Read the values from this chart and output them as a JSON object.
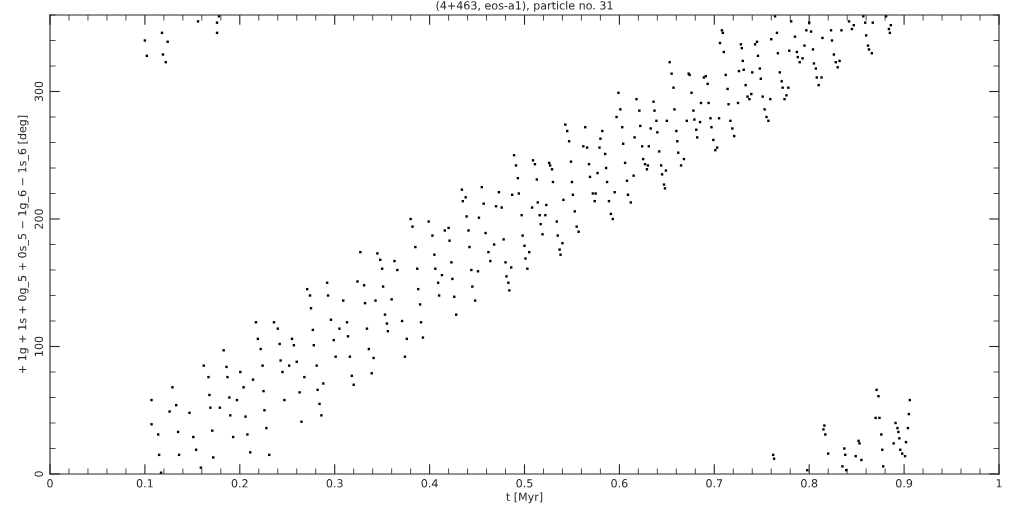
{
  "chart_data": {
    "type": "scatter",
    "title": "(4+463, eos-a1), particle no. 31",
    "xlabel": "t [Myr]",
    "ylabel": "+ 1g + 1s + 0g_5 + 0s_5 − 1g_6 − 1s_6 [deg]",
    "xlim": [
      0,
      1
    ],
    "xticks": [
      0,
      0.1,
      0.2,
      0.3,
      0.4,
      0.5,
      0.6,
      0.7,
      0.8,
      0.9,
      1
    ],
    "ylim": [
      0,
      360
    ],
    "yticks": [
      0,
      100,
      200,
      300
    ],
    "grid": false,
    "legend": false,
    "marker": "square",
    "series": [
      {
        "color": "#000000",
        "x": [
          0.1,
          0.102,
          0.118,
          0.119,
          0.122,
          0.124,
          0.156,
          0.176,
          0.176,
          0.178,
          0.107,
          0.107,
          0.114,
          0.115,
          0.117,
          0.126,
          0.129,
          0.133,
          0.135,
          0.136,
          0.147,
          0.151,
          0.154,
          0.159,
          0.162,
          0.167,
          0.168,
          0.169,
          0.171,
          0.172,
          0.179,
          0.183,
          0.186,
          0.187,
          0.189,
          0.19,
          0.193,
          0.197,
          0.2005,
          0.204,
          0.206,
          0.208,
          0.211,
          0.214,
          0.217,
          0.219,
          0.222,
          0.224,
          0.225,
          0.226,
          0.228,
          0.231,
          0.236,
          0.24,
          0.242,
          0.243,
          0.245,
          0.247,
          0.252,
          0.255,
          0.257,
          0.26,
          0.263,
          0.265,
          0.268,
          0.271,
          0.274,
          0.275,
          0.277,
          0.278,
          0.281,
          0.282,
          0.284,
          0.286,
          0.288,
          0.292,
          0.293,
          0.296,
          0.299,
          0.301,
          0.305,
          0.309,
          0.313,
          0.314,
          0.316,
          0.318,
          0.32,
          0.324,
          0.327,
          0.331,
          0.332,
          0.334,
          0.336,
          0.339,
          0.341,
          0.343,
          0.345,
          0.348,
          0.35,
          0.351,
          0.353,
          0.355,
          0.356,
          0.36,
          0.363,
          0.366,
          0.371,
          0.374,
          0.376,
          0.38,
          0.382,
          0.385,
          0.387,
          0.388,
          0.39,
          0.391,
          0.393,
          0.399,
          0.403,
          0.405,
          0.406,
          0.409,
          0.41,
          0.413,
          0.416,
          0.42,
          0.421,
          0.423,
          0.424,
          0.426,
          0.428,
          0.434,
          0.435,
          0.438,
          0.439,
          0.441,
          0.442,
          0.444,
          0.445,
          0.448,
          0.451,
          0.452,
          0.455,
          0.457,
          0.459,
          0.462,
          0.464,
          0.468,
          0.47,
          0.473,
          0.476,
          0.478,
          0.48,
          0.481,
          0.483,
          0.484,
          0.486,
          0.487,
          0.489,
          0.491,
          0.493,
          0.494,
          0.497,
          0.498,
          0.5,
          0.501,
          0.503,
          0.505,
          0.508,
          0.509,
          0.511,
          0.513,
          0.514,
          0.516,
          0.517,
          0.519,
          0.522,
          0.523,
          0.526,
          0.527,
          0.529,
          0.53,
          0.534,
          0.535,
          0.537,
          0.538,
          0.54,
          0.541,
          0.543,
          0.545,
          0.547,
          0.549,
          0.55,
          0.551,
          0.553,
          0.555,
          0.557,
          0.562,
          0.564,
          0.566,
          0.568,
          0.569,
          0.572,
          0.574,
          0.575,
          0.577,
          0.579,
          0.58,
          0.582,
          0.585,
          0.586,
          0.587,
          0.589,
          0.591,
          0.593,
          0.595,
          0.597,
          0.599,
          0.601,
          0.603,
          0.604,
          0.606,
          0.608,
          0.609,
          0.612,
          0.615,
          0.616,
          0.618,
          0.621,
          0.622,
          0.624,
          0.625,
          0.627,
          0.629,
          0.63,
          0.631,
          0.633,
          0.636,
          0.637,
          0.639,
          0.64,
          0.642,
          0.644,
          0.645,
          0.647,
          0.648,
          0.649,
          0.65,
          0.653,
          0.655,
          0.657,
          0.658,
          0.66,
          0.661,
          0.662,
          0.665,
          0.668,
          0.671,
          0.673,
          0.674,
          0.676,
          0.678,
          0.679,
          0.681,
          0.682,
          0.685,
          0.686,
          0.689,
          0.691,
          0.693,
          0.694,
          0.696,
          0.697,
          0.699,
          0.701,
          0.703,
          0.705,
          0.706,
          0.708,
          0.709,
          0.71,
          0.712,
          0.714,
          0.715,
          0.717,
          0.719,
          0.721,
          0.725,
          0.726,
          0.728,
          0.729,
          0.73,
          0.731,
          0.733,
          0.735,
          0.737,
          0.739,
          0.74,
          0.743,
          0.745,
          0.746,
          0.748,
          0.749,
          0.751,
          0.753,
          0.755,
          0.757,
          0.759,
          0.76,
          0.764,
          0.766,
          0.767,
          0.769,
          0.771,
          0.772,
          0.774,
          0.776,
          0.778,
          0.779,
          0.781,
          0.785,
          0.787,
          0.788,
          0.79,
          0.793,
          0.795,
          0.797,
          0.8,
          0.802,
          0.804,
          0.805,
          0.807,
          0.808,
          0.81,
          0.813,
          0.814,
          0.823,
          0.824,
          0.826,
          0.828,
          0.83,
          0.832,
          0.834,
          0.842,
          0.845,
          0.847,
          0.857,
          0.859,
          0.86,
          0.862,
          0.863,
          0.866,
          0.867,
          0.881,
          0.884,
          0.885,
          0.886,
          0.762,
          0.763,
          0.798,
          0.815,
          0.816,
          0.817,
          0.82,
          0.835,
          0.837,
          0.838,
          0.839,
          0.849,
          0.852,
          0.853,
          0.855,
          0.871,
          0.873,
          0.87,
          0.874,
          0.876,
          0.877,
          0.878,
          0.889,
          0.891,
          0.893,
          0.894,
          0.895,
          0.896,
          0.898,
          0.901,
          0.902,
          0.904,
          0.905,
          0.906
        ],
        "values": [
          340,
          328,
          346,
          329,
          323,
          339,
          355,
          354,
          346,
          359,
          58,
          39,
          31,
          15,
          1,
          49,
          68,
          54,
          33,
          15,
          48,
          29,
          19,
          5,
          85,
          76,
          62,
          52,
          34,
          13,
          52,
          97,
          84,
          76,
          60,
          46,
          29,
          58,
          80,
          68,
          45,
          31,
          17,
          74,
          119,
          106,
          98,
          85,
          65,
          50,
          36,
          15,
          119,
          114,
          102,
          89,
          80,
          58,
          85,
          106,
          101,
          88,
          64,
          41,
          76,
          145,
          140,
          130,
          113,
          101,
          85,
          66,
          55,
          46,
          71,
          150,
          140,
          121,
          105,
          92,
          114,
          136,
          119,
          108,
          92,
          77,
          70,
          151,
          174,
          148,
          134,
          114,
          98,
          79,
          91,
          136,
          173,
          168,
          161,
          147,
          125,
          118,
          112,
          137,
          167,
          160,
          120,
          92,
          106,
          200,
          194,
          178,
          161,
          145,
          133,
          119,
          107,
          198,
          187,
          172,
          161,
          150,
          140,
          156,
          191,
          193,
          183,
          166,
          153,
          139,
          125,
          223,
          214,
          217,
          202,
          191,
          178,
          160,
          147,
          136,
          159,
          201,
          225,
          212,
          189,
          174,
          167,
          180,
          210,
          221,
          209,
          184,
          166,
          155,
          150,
          144,
          162,
          219,
          250,
          242,
          232,
          220,
          203,
          187,
          179,
          169,
          161,
          174,
          209,
          246,
          243,
          231,
          213,
          203,
          196,
          188,
          203,
          211,
          244,
          242,
          239,
          229,
          198,
          187,
          176,
          172,
          181,
          215,
          274,
          269,
          261,
          245,
          229,
          219,
          206,
          194,
          190,
          257,
          272,
          256,
          243,
          233,
          220,
          214,
          220,
          236,
          256,
          263,
          269,
          251,
          240,
          229,
          214,
          204,
          200,
          221,
          280,
          299,
          286,
          272,
          259,
          244,
          230,
          219,
          213,
          234,
          264,
          294,
          285,
          273,
          257,
          247,
          243,
          239,
          242,
          257,
          271,
          292,
          285,
          277,
          268,
          253,
          242,
          235,
          227,
          224,
          238,
          277,
          323,
          314,
          303,
          286,
          269,
          261,
          252,
          242,
          247,
          277,
          314,
          313,
          299,
          285,
          278,
          270,
          264,
          276,
          291,
          311,
          312,
          306,
          291,
          279,
          272,
          262,
          254,
          256,
          279,
          338,
          348,
          346,
          331,
          313,
          302,
          290,
          277,
          271,
          265,
          291,
          316,
          337,
          334,
          324,
          317,
          305,
          296,
          294,
          298,
          315,
          337,
          339,
          328,
          318,
          310,
          296,
          286,
          280,
          277,
          294,
          341,
          359,
          346,
          330,
          315,
          308,
          303,
          294,
          297,
          303,
          332,
          355,
          343,
          331,
          327,
          323,
          326,
          336,
          348,
          354,
          347,
          333,
          322,
          318,
          311,
          305,
          311,
          342,
          348,
          340,
          329,
          323,
          319,
          324,
          348,
          355,
          349,
          352,
          359,
          354,
          344,
          336,
          333,
          330,
          354,
          359,
          349,
          346,
          352,
          15,
          12,
          3,
          35,
          38,
          31,
          16,
          6,
          20,
          15,
          3,
          14,
          26,
          24,
          11,
          66,
          61,
          44,
          44,
          31,
          19,
          6,
          24,
          40,
          36,
          33,
          28,
          19,
          16,
          14,
          25,
          36,
          47,
          58
        ]
      }
    ]
  }
}
